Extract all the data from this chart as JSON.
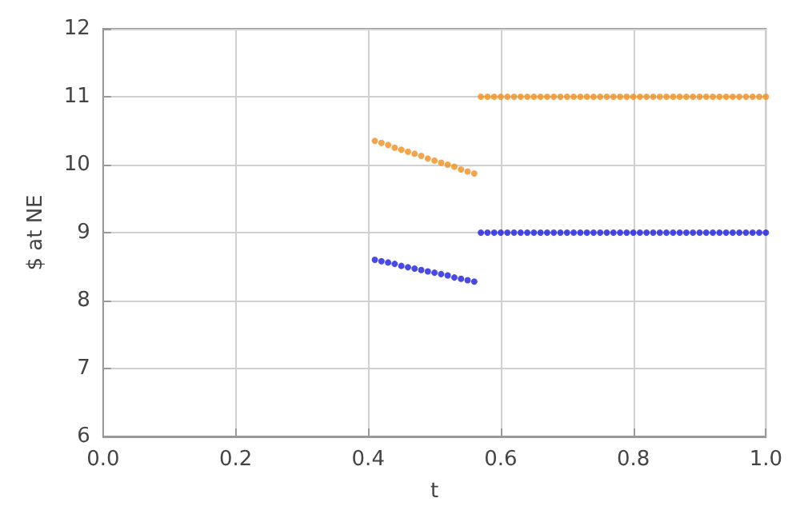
{
  "chart_data": {
    "type": "scatter",
    "xlabel": "t",
    "ylabel": "$ at NE",
    "xlim": [
      0,
      1
    ],
    "ylim": [
      6,
      12
    ],
    "xticks": [
      {
        "value": 0,
        "label": "0.0"
      },
      0.2,
      0.4,
      0.6,
      0.8,
      {
        "value": 1,
        "label": "1.0"
      }
    ],
    "yticks": [
      6,
      7,
      8,
      9,
      10,
      11,
      12
    ],
    "grid": true,
    "marker": "circle",
    "series": [
      {
        "color": "#f28e1c",
        "x": [
          0.41,
          0.42,
          0.43,
          0.44,
          0.45,
          0.46,
          0.47,
          0.48,
          0.49,
          0.5,
          0.51,
          0.52,
          0.53,
          0.54,
          0.55,
          0.56,
          0.57,
          0.58,
          0.59,
          0.6,
          0.61,
          0.62,
          0.63,
          0.64,
          0.65,
          0.66,
          0.67,
          0.68,
          0.69,
          0.7,
          0.71,
          0.72,
          0.73,
          0.74,
          0.75,
          0.76,
          0.77,
          0.78,
          0.79,
          0.8,
          0.81,
          0.82,
          0.83,
          0.84,
          0.85,
          0.86,
          0.87,
          0.88,
          0.89,
          0.9,
          0.91,
          0.92,
          0.93,
          0.94,
          0.95,
          0.96,
          0.97,
          0.98,
          0.99,
          1.0
        ],
        "values": [
          10.35,
          10.32,
          10.29,
          10.25,
          10.22,
          10.19,
          10.16,
          10.13,
          10.09,
          10.06,
          10.03,
          10.0,
          9.97,
          9.93,
          9.9,
          9.87,
          11,
          11,
          11,
          11,
          11,
          11,
          11,
          11,
          11,
          11,
          11,
          11,
          11,
          11,
          11,
          11,
          11,
          11,
          11,
          11,
          11,
          11,
          11,
          11,
          11,
          11,
          11,
          11,
          11,
          11,
          11,
          11,
          11,
          11,
          11,
          11,
          11,
          11,
          11,
          11,
          11,
          11,
          11,
          11
        ]
      },
      {
        "color": "#1c1ce0",
        "x": [
          0.41,
          0.42,
          0.43,
          0.44,
          0.45,
          0.46,
          0.47,
          0.48,
          0.49,
          0.5,
          0.51,
          0.52,
          0.53,
          0.54,
          0.55,
          0.56,
          0.57,
          0.58,
          0.59,
          0.6,
          0.61,
          0.62,
          0.63,
          0.64,
          0.65,
          0.66,
          0.67,
          0.68,
          0.69,
          0.7,
          0.71,
          0.72,
          0.73,
          0.74,
          0.75,
          0.76,
          0.77,
          0.78,
          0.79,
          0.8,
          0.81,
          0.82,
          0.83,
          0.84,
          0.85,
          0.86,
          0.87,
          0.88,
          0.89,
          0.9,
          0.91,
          0.92,
          0.93,
          0.94,
          0.95,
          0.96,
          0.97,
          0.98,
          0.99,
          1.0
        ],
        "values": [
          8.6,
          8.58,
          8.56,
          8.54,
          8.51,
          8.49,
          8.47,
          8.45,
          8.43,
          8.41,
          8.39,
          8.37,
          8.34,
          8.32,
          8.3,
          8.28,
          9,
          9,
          9,
          9,
          9,
          9,
          9,
          9,
          9,
          9,
          9,
          9,
          9,
          9,
          9,
          9,
          9,
          9,
          9,
          9,
          9,
          9,
          9,
          9,
          9,
          9,
          9,
          9,
          9,
          9,
          9,
          9,
          9,
          9,
          9,
          9,
          9,
          9,
          9,
          9,
          9,
          9,
          9,
          9
        ]
      }
    ]
  }
}
